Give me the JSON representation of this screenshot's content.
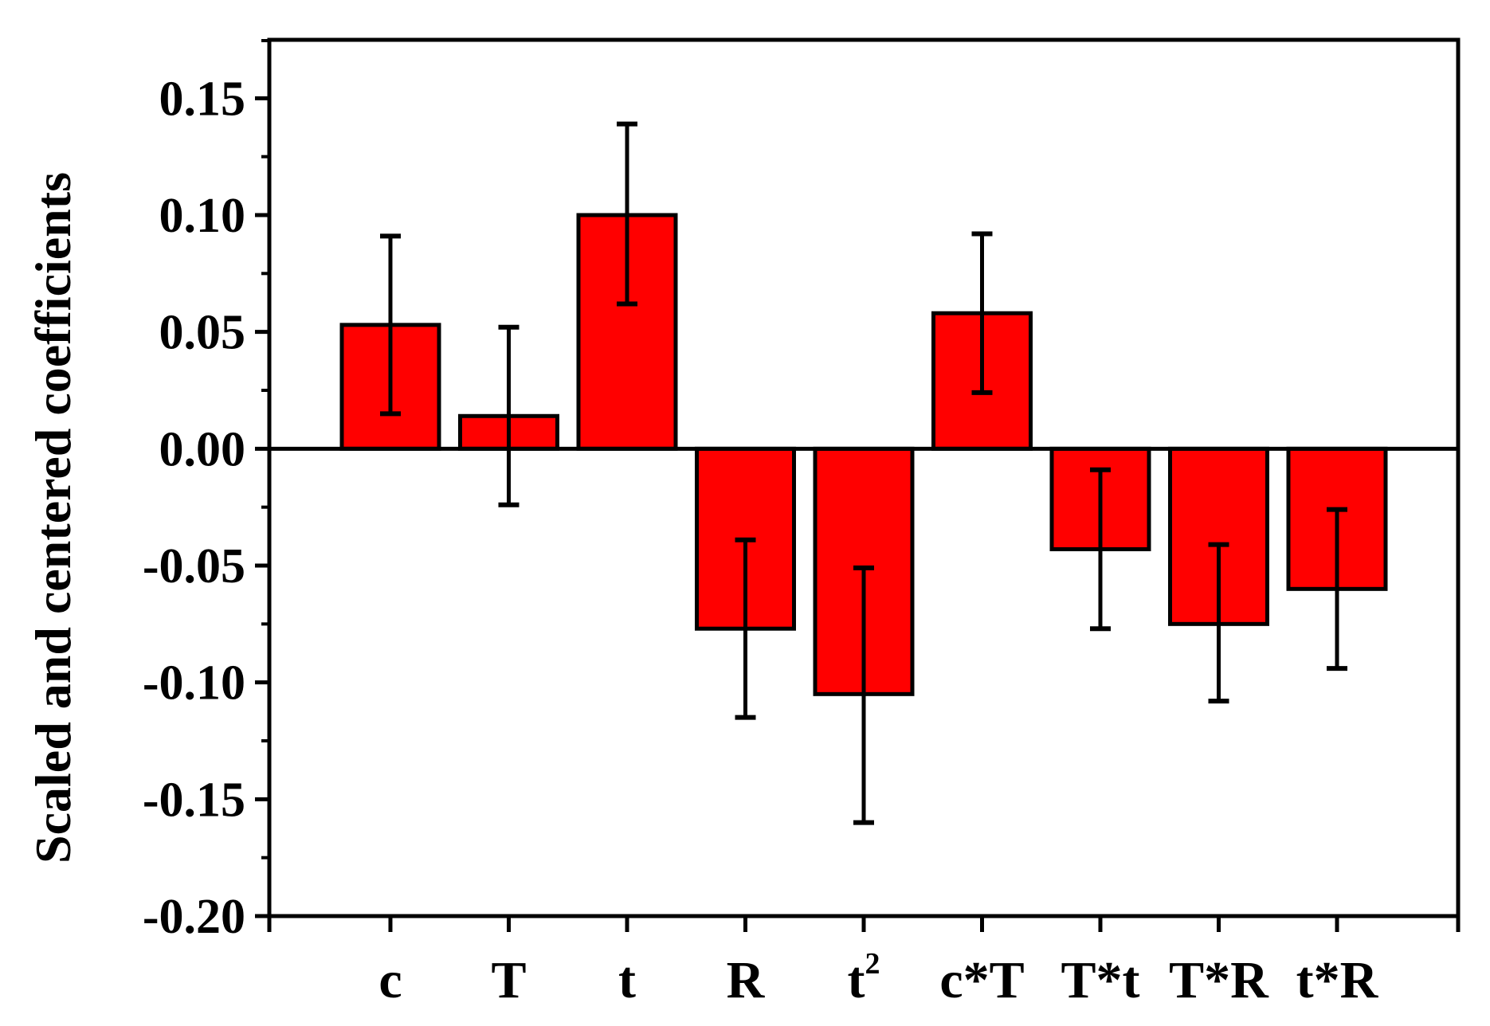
{
  "chart_data": {
    "type": "bar",
    "ylabel": "Scaled and centered coefficients",
    "xlabel": "",
    "ylim": [
      -0.2,
      0.175
    ],
    "yticks": [
      0.15,
      0.1,
      0.05,
      0.0,
      -0.05,
      -0.1,
      -0.15,
      -0.2
    ],
    "ytick_labels": [
      "0.15",
      "0.10",
      "0.05",
      "0.00",
      "-0.05",
      "-0.10",
      "-0.15",
      "-0.20"
    ],
    "categories": [
      {
        "label": "c",
        "sup": ""
      },
      {
        "label": "T",
        "sup": ""
      },
      {
        "label": "t",
        "sup": ""
      },
      {
        "label": "R",
        "sup": ""
      },
      {
        "label": "t",
        "sup": "2"
      },
      {
        "label": "c*T",
        "sup": ""
      },
      {
        "label": "T*t",
        "sup": ""
      },
      {
        "label": "T*R",
        "sup": ""
      },
      {
        "label": "t*R",
        "sup": ""
      }
    ],
    "values": [
      0.053,
      0.014,
      0.1,
      -0.077,
      -0.105,
      0.058,
      -0.043,
      -0.075,
      -0.06
    ],
    "error_low": [
      0.015,
      -0.024,
      0.062,
      -0.115,
      -0.16,
      0.024,
      -0.077,
      -0.108,
      -0.094
    ],
    "error_high": [
      0.091,
      0.052,
      0.139,
      -0.039,
      -0.051,
      0.092,
      -0.009,
      -0.041,
      -0.026
    ],
    "bar_color": "#ff0000",
    "edge_color": "#000000",
    "grid": false,
    "legend": "none"
  }
}
